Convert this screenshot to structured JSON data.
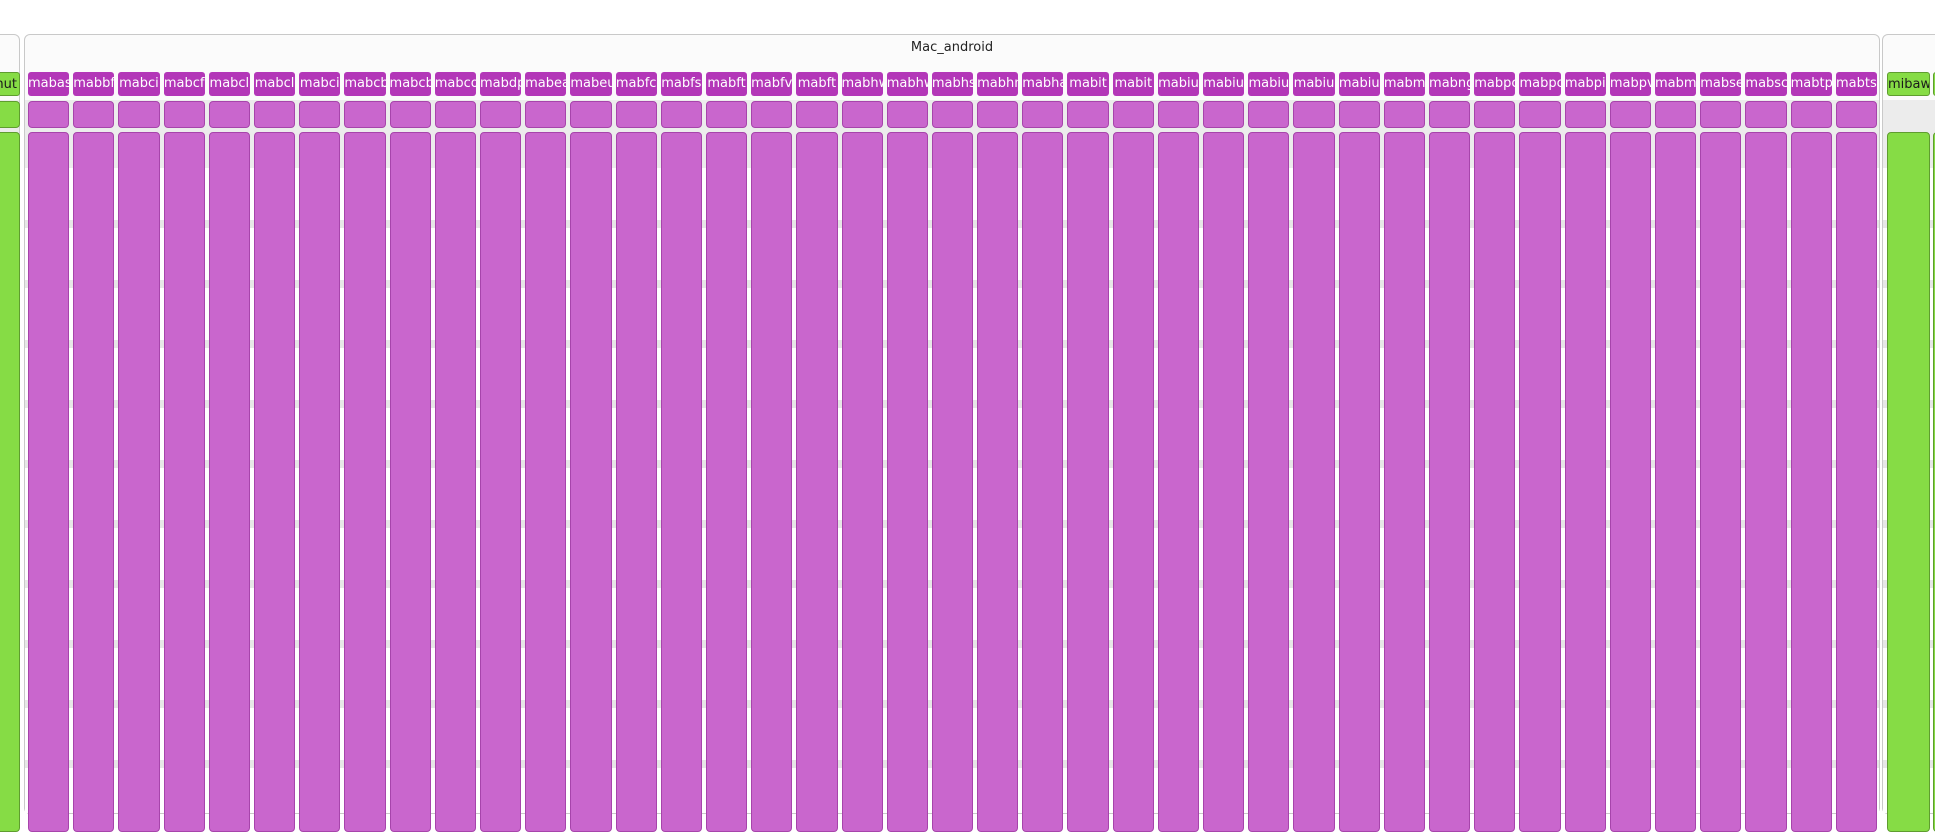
{
  "left_group": {
    "columns": [
      {
        "label": "mut",
        "color": "#86dc45"
      }
    ]
  },
  "mac_android": {
    "title": "Mac_android",
    "columns": [
      "mabas",
      "mabbf",
      "mabci",
      "mabcf",
      "mabcl",
      "mabcl",
      "mabci",
      "mabcb",
      "mabcb",
      "mabco",
      "mabdp",
      "mabea",
      "mabeu",
      "mabfc",
      "mabfs",
      "mabft",
      "mabfv",
      "mabft",
      "mabhw",
      "mabhw",
      "mabhs",
      "mabhm",
      "mabha",
      "mabit",
      "mabit",
      "mabiu",
      "mabiu",
      "mabiu",
      "mabiu",
      "mabiu",
      "mabm",
      "mabng",
      "mabpc",
      "mabpc",
      "mabpi",
      "mabpv",
      "mabm",
      "mabse",
      "mabsc",
      "mabtp",
      "mabts"
    ],
    "color": "#c966cd"
  },
  "right_group": {
    "columns": [
      {
        "label": "mibaw",
        "color": "#86dc45"
      },
      {
        "label": "",
        "color": "#86dc45"
      }
    ]
  }
}
